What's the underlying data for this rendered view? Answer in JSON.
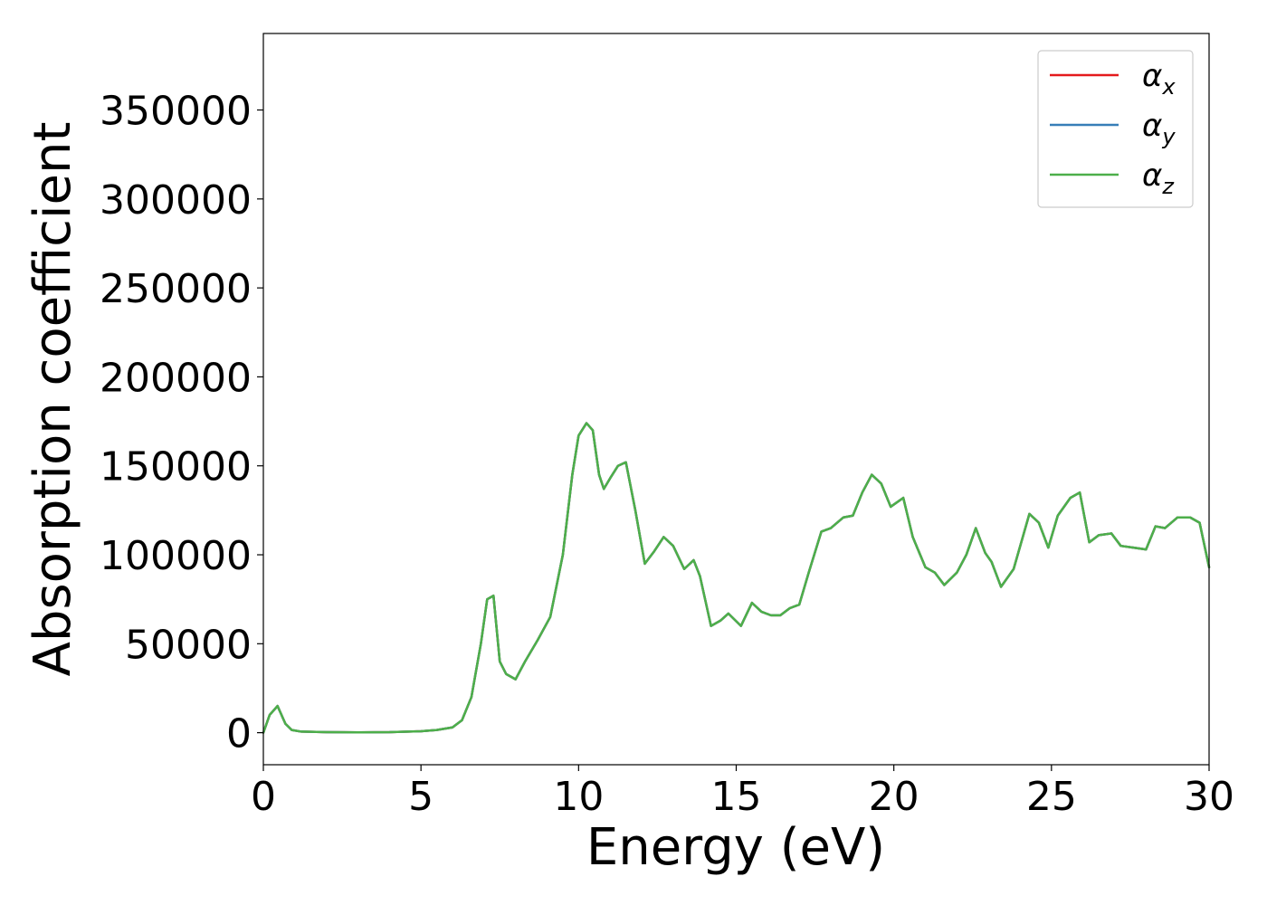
{
  "chart_data": {
    "type": "line",
    "title": "",
    "xlabel": "Energy (eV)",
    "ylabel": "Absorption coefficient",
    "xlim": [
      0,
      30
    ],
    "ylim": [
      -18000,
      393000
    ],
    "xticks": [
      0,
      5,
      10,
      15,
      20,
      25,
      30
    ],
    "xtick_labels": [
      "0",
      "5",
      "10",
      "15",
      "20",
      "25",
      "30"
    ],
    "yticks": [
      0,
      50000,
      100000,
      150000,
      200000,
      250000,
      300000,
      350000
    ],
    "ytick_labels": [
      "0",
      "50000",
      "100000",
      "150000",
      "200000",
      "250000",
      "300000",
      "350000"
    ],
    "grid": false,
    "legend_position": "top-right",
    "x": [
      0,
      0.2,
      0.45,
      0.7,
      0.9,
      1.2,
      2,
      3,
      4,
      5,
      5.5,
      6,
      6.3,
      6.6,
      6.9,
      7.1,
      7.3,
      7.5,
      7.7,
      8.0,
      8.3,
      8.7,
      9.1,
      9.5,
      9.8,
      10.0,
      10.25,
      10.45,
      10.65,
      10.8,
      11.0,
      11.25,
      11.5,
      11.8,
      12.1,
      12.4,
      12.7,
      13.0,
      13.35,
      13.65,
      13.85,
      14.2,
      14.5,
      14.75,
      15.15,
      15.5,
      15.8,
      16.1,
      16.4,
      16.7,
      17.0,
      17.3,
      17.7,
      18.0,
      18.4,
      18.7,
      19.0,
      19.3,
      19.6,
      19.9,
      20.3,
      20.6,
      21.0,
      21.3,
      21.6,
      22.0,
      22.3,
      22.6,
      22.9,
      23.1,
      23.4,
      23.8,
      24.3,
      24.6,
      24.9,
      25.2,
      25.6,
      25.9,
      26.2,
      26.5,
      26.9,
      27.2,
      27.6,
      28.0,
      28.3,
      28.6,
      29.0,
      29.4,
      29.7,
      30.0
    ],
    "series": [
      {
        "name": "α_x",
        "label_main": "α",
        "label_sub": "x",
        "color": "#e41a1c",
        "values": [
          0,
          10000,
          15000,
          5000,
          1500,
          600,
          300,
          200,
          300,
          800,
          1500,
          3000,
          7000,
          20000,
          50000,
          75000,
          77000,
          40000,
          33000,
          30000,
          40000,
          52000,
          65000,
          100000,
          145000,
          167000,
          174000,
          170000,
          145000,
          137000,
          143000,
          150000,
          152000,
          125000,
          95000,
          102000,
          110000,
          105000,
          92000,
          97000,
          88000,
          60000,
          63000,
          67000,
          60000,
          73000,
          68000,
          66000,
          66000,
          70000,
          72000,
          90000,
          113000,
          115000,
          121000,
          122000,
          135000,
          145000,
          140000,
          127000,
          132000,
          110000,
          93000,
          90000,
          83000,
          90000,
          100000,
          115000,
          101000,
          96000,
          82000,
          92000,
          123000,
          118000,
          104000,
          122000,
          132000,
          135000,
          107000,
          111000,
          112000,
          105000,
          104000,
          103000,
          116000,
          115000,
          121000,
          121000,
          118000,
          93000
        ]
      },
      {
        "name": "α_y",
        "label_main": "α",
        "label_sub": "y",
        "color": "#377eb8",
        "values": [
          0,
          10000,
          15000,
          5000,
          1500,
          600,
          300,
          200,
          300,
          800,
          1500,
          3000,
          7000,
          20000,
          50000,
          75000,
          77000,
          40000,
          33000,
          30000,
          40000,
          52000,
          65000,
          100000,
          145000,
          167000,
          174000,
          170000,
          145000,
          137000,
          143000,
          150000,
          152000,
          125000,
          95000,
          102000,
          110000,
          105000,
          92000,
          97000,
          88000,
          60000,
          63000,
          67000,
          60000,
          73000,
          68000,
          66000,
          66000,
          70000,
          72000,
          90000,
          113000,
          115000,
          121000,
          122000,
          135000,
          145000,
          140000,
          127000,
          132000,
          110000,
          93000,
          90000,
          83000,
          90000,
          100000,
          115000,
          101000,
          96000,
          82000,
          92000,
          123000,
          118000,
          104000,
          122000,
          132000,
          135000,
          107000,
          111000,
          112000,
          105000,
          104000,
          103000,
          116000,
          115000,
          121000,
          121000,
          118000,
          93000
        ]
      },
      {
        "name": "α_z",
        "label_main": "α",
        "label_sub": "z",
        "color": "#4daf4a",
        "values": [
          0,
          10000,
          15000,
          5000,
          1500,
          600,
          300,
          200,
          300,
          800,
          1500,
          3000,
          7000,
          20000,
          50000,
          75000,
          77000,
          40000,
          33000,
          30000,
          40000,
          52000,
          65000,
          100000,
          145000,
          167000,
          174000,
          170000,
          145000,
          137000,
          143000,
          150000,
          152000,
          125000,
          95000,
          102000,
          110000,
          105000,
          92000,
          97000,
          88000,
          60000,
          63000,
          67000,
          60000,
          73000,
          68000,
          66000,
          66000,
          70000,
          72000,
          90000,
          113000,
          115000,
          121000,
          122000,
          135000,
          145000,
          140000,
          127000,
          132000,
          110000,
          93000,
          90000,
          83000,
          90000,
          100000,
          115000,
          101000,
          96000,
          82000,
          92000,
          123000,
          118000,
          104000,
          122000,
          132000,
          135000,
          107000,
          111000,
          112000,
          105000,
          104000,
          103000,
          116000,
          115000,
          121000,
          121000,
          118000,
          93000
        ]
      }
    ]
  }
}
